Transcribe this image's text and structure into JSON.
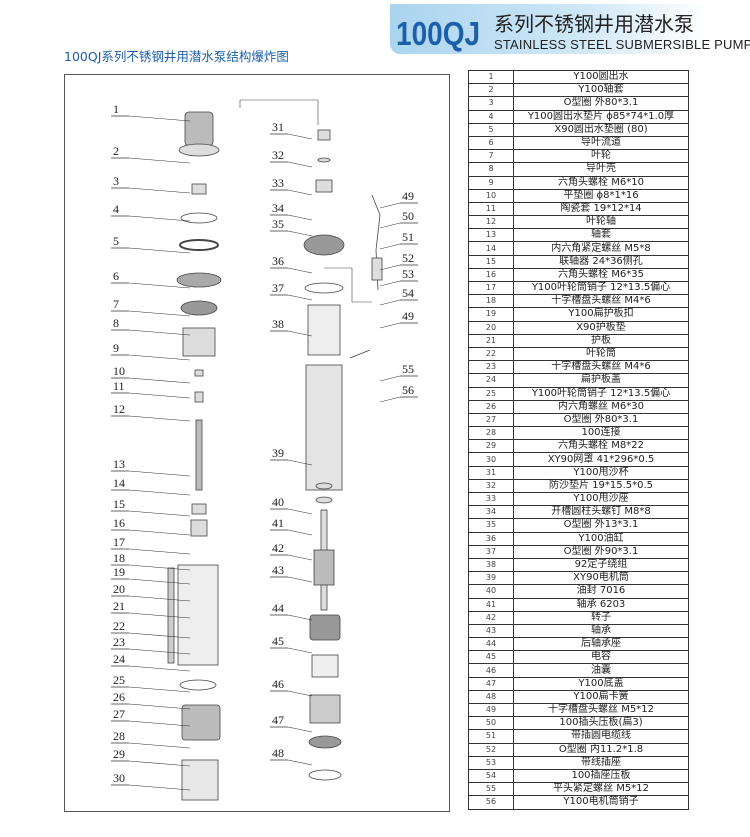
{
  "header": {
    "brand": "100QJ",
    "title_cn": "系列不锈钢井用潜水泵",
    "title_en": "STAINLESS STEEL SUBMERSIBLE PUMP",
    "diagram_title": "100QJ系列不锈钢井用潜水泵结构爆炸图"
  },
  "parts": [
    {
      "no": "1",
      "name": "Y100圆出水"
    },
    {
      "no": "2",
      "name": "Y100轴套"
    },
    {
      "no": "3",
      "name": "O型圈 外80*3.1"
    },
    {
      "no": "4",
      "name": "Y100圆出水垫片 ɸ85*74*1.0厚"
    },
    {
      "no": "5",
      "name": "X90圆出水垫圈 (80)"
    },
    {
      "no": "6",
      "name": "导叶流道"
    },
    {
      "no": "7",
      "name": "叶轮"
    },
    {
      "no": "8",
      "name": "导叶壳"
    },
    {
      "no": "9",
      "name": "六角头螺栓 M6*10"
    },
    {
      "no": "10",
      "name": "平垫圈 ɸ8*1*16"
    },
    {
      "no": "11",
      "name": "陶瓷套 19*12*14"
    },
    {
      "no": "12",
      "name": "叶轮轴"
    },
    {
      "no": "13",
      "name": "轴套"
    },
    {
      "no": "14",
      "name": "内六角紧定螺丝 M5*8"
    },
    {
      "no": "15",
      "name": "联轴器 24*36侧孔"
    },
    {
      "no": "16",
      "name": "六角头螺栓 M6*35"
    },
    {
      "no": "17",
      "name": "Y100叶轮筒销子 12*13.5偏心"
    },
    {
      "no": "18",
      "name": "十字槽盘头螺丝 M4*6"
    },
    {
      "no": "19",
      "name": "Y100扁护板扣"
    },
    {
      "no": "20",
      "name": "X90护板垫"
    },
    {
      "no": "21",
      "name": "护板"
    },
    {
      "no": "22",
      "name": "叶轮筒"
    },
    {
      "no": "23",
      "name": "十字槽盘头螺丝 M4*6"
    },
    {
      "no": "24",
      "name": "扁护板盖"
    },
    {
      "no": "25",
      "name": "Y100叶轮筒销子 12*13.5偏心"
    },
    {
      "no": "26",
      "name": "内六角螺丝 M6*30"
    },
    {
      "no": "27",
      "name": "O型圈 外80*3.1"
    },
    {
      "no": "28",
      "name": "100连接"
    },
    {
      "no": "29",
      "name": "六角头螺栓 M8*22"
    },
    {
      "no": "30",
      "name": "XY90网罩 41*296*0.5"
    },
    {
      "no": "31",
      "name": "Y100甩沙杯"
    },
    {
      "no": "32",
      "name": "防沙垫片 19*15.5*0.5"
    },
    {
      "no": "33",
      "name": "Y100甩沙座"
    },
    {
      "no": "34",
      "name": "开槽圆柱头螺钉 M8*8"
    },
    {
      "no": "35",
      "name": "O型圈 外13*3.1"
    },
    {
      "no": "36",
      "name": "Y100油缸"
    },
    {
      "no": "37",
      "name": "O型圈 外90*3.1"
    },
    {
      "no": "38",
      "name": "92定子绕组"
    },
    {
      "no": "39",
      "name": "XY90电机筒"
    },
    {
      "no": "40",
      "name": "油封 7016"
    },
    {
      "no": "41",
      "name": "轴承 6203"
    },
    {
      "no": "42",
      "name": "转子"
    },
    {
      "no": "43",
      "name": "轴承"
    },
    {
      "no": "44",
      "name": "后轴承座"
    },
    {
      "no": "45",
      "name": "电容"
    },
    {
      "no": "46",
      "name": "油囊"
    },
    {
      "no": "47",
      "name": "Y100底盖"
    },
    {
      "no": "48",
      "name": "Y100扁卡簧"
    },
    {
      "no": "49",
      "name": "十字槽盘头螺丝 M5*12"
    },
    {
      "no": "50",
      "name": "100插头压板(扁3)"
    },
    {
      "no": "51",
      "name": "带插圆电缆线"
    },
    {
      "no": "52",
      "name": "O型圈 内11.2*1.8"
    },
    {
      "no": "53",
      "name": "带线插座"
    },
    {
      "no": "54",
      "name": "100插座压板"
    },
    {
      "no": "55",
      "name": "平头紧定螺丝 M5*12"
    },
    {
      "no": "56",
      "name": "Y100电机筒销子"
    }
  ],
  "callouts": {
    "left": [
      [
        "1",
        113
      ],
      [
        "2",
        155
      ],
      [
        "3",
        185
      ],
      [
        "4",
        213
      ],
      [
        "5",
        245
      ],
      [
        "6",
        280
      ],
      [
        "7",
        308
      ],
      [
        "8",
        327
      ],
      [
        "9",
        352
      ],
      [
        "10",
        375
      ],
      [
        "11",
        390
      ],
      [
        "12",
        413
      ],
      [
        "13",
        468
      ],
      [
        "14",
        487
      ],
      [
        "15",
        508
      ],
      [
        "16",
        527
      ],
      [
        "17",
        546
      ],
      [
        "18",
        562
      ],
      [
        "19",
        576
      ],
      [
        "20",
        593
      ],
      [
        "21",
        610
      ],
      [
        "22",
        630
      ],
      [
        "23",
        646
      ],
      [
        "24",
        663
      ],
      [
        "25",
        684
      ],
      [
        "26",
        701
      ],
      [
        "27",
        718
      ],
      [
        "28",
        740
      ],
      [
        "29",
        758
      ],
      [
        "30",
        782
      ]
    ],
    "middle": [
      [
        "31",
        131
      ],
      [
        "32",
        159
      ],
      [
        "33",
        187
      ],
      [
        "34",
        212
      ],
      [
        "35",
        228
      ],
      [
        "36",
        265
      ],
      [
        "37",
        292
      ],
      [
        "38",
        328
      ],
      [
        "39",
        457
      ],
      [
        "40",
        506
      ],
      [
        "41",
        527
      ],
      [
        "42",
        552
      ],
      [
        "43",
        574
      ],
      [
        "44",
        612
      ],
      [
        "45",
        645
      ],
      [
        "46",
        688
      ],
      [
        "47",
        724
      ],
      [
        "48",
        757
      ]
    ],
    "right": [
      [
        "49",
        200
      ],
      [
        "50",
        220
      ],
      [
        "51",
        241
      ],
      [
        "52",
        262
      ],
      [
        "53",
        278
      ],
      [
        "54",
        297
      ],
      [
        "49",
        320
      ],
      [
        "55",
        373
      ],
      [
        "56",
        394
      ]
    ]
  }
}
